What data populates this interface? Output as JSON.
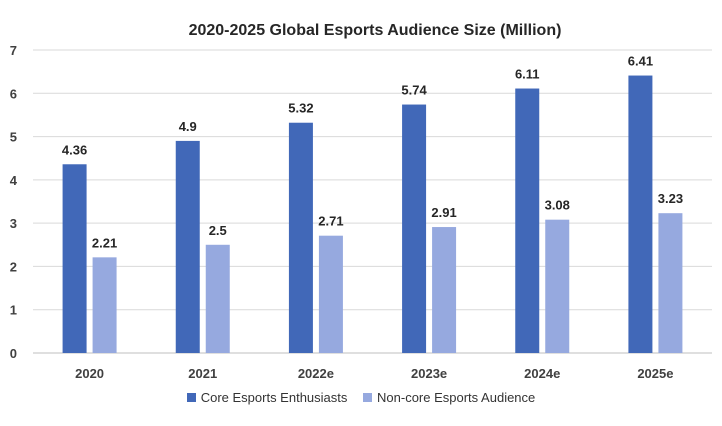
{
  "chart_data": {
    "type": "bar",
    "title": "2020-2025 Global Esports Audience Size (Million)",
    "xlabel": "",
    "ylabel": "",
    "categories": [
      "2020",
      "2021",
      "2022e",
      "2023e",
      "2024e",
      "2025e"
    ],
    "series": [
      {
        "name": "Core Esports Enthusiasts",
        "values": [
          4.36,
          4.9,
          5.32,
          5.74,
          6.11,
          6.41
        ],
        "color": "#4168b8"
      },
      {
        "name": "Non-core Esports Audience",
        "values": [
          2.21,
          2.5,
          2.71,
          2.91,
          3.08,
          3.23
        ],
        "color": "#96a9df"
      }
    ],
    "ylim": [
      0,
      7
    ],
    "yticks": [
      0,
      1,
      2,
      3,
      4,
      5,
      6,
      7
    ],
    "grid": true,
    "legend": "bottom",
    "data_labels": true
  }
}
